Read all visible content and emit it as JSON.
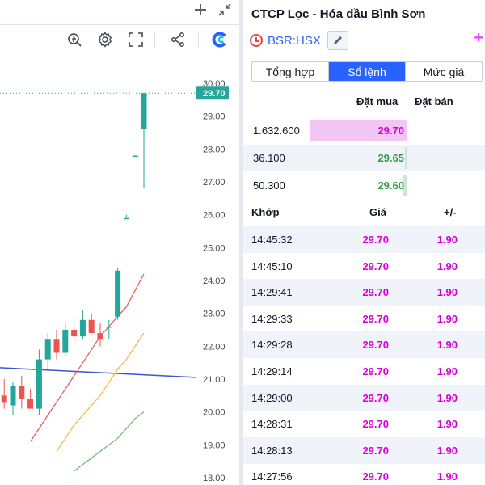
{
  "chart": {
    "price_axis": [
      "30.00",
      "29.00",
      "28.00",
      "27.00",
      "26.00",
      "25.00",
      "24.00",
      "23.00",
      "22.00",
      "21.00",
      "20.00",
      "19.00",
      "18.00"
    ],
    "last_price_label": "29.70",
    "colors": {
      "up": "#26a69a",
      "down": "#ef5350",
      "ma_red": "#ef5350",
      "ma_orange": "#f5b341",
      "ma_green": "#66bb6a",
      "ma_blue": "#3d52d5",
      "last_price_badge": "#26a69a"
    },
    "icons": [
      "plus-icon",
      "collapse-icon",
      "replay-icon",
      "settings-icon",
      "fullscreen-icon",
      "share-icon",
      "brand-logo-icon"
    ]
  },
  "chart_data": {
    "type": "candlestick",
    "y_axis_labels": [
      "30.00",
      "29.00",
      "28.00",
      "27.00",
      "26.00",
      "25.00",
      "24.00",
      "23.00",
      "22.00",
      "21.00",
      "20.00",
      "19.00",
      "18.00"
    ],
    "ylim": [
      17.6,
      30.3
    ],
    "last_price": 29.7,
    "candles": [
      {
        "o": 19.6,
        "h": 20.4,
        "l": 19.0,
        "c": 20.2
      },
      {
        "o": 20.2,
        "h": 20.6,
        "l": 19.4,
        "c": 19.6
      },
      {
        "o": 19.6,
        "h": 20.7,
        "l": 19.5,
        "c": 20.5
      },
      {
        "o": 20.5,
        "h": 21.0,
        "l": 20.1,
        "c": 20.3
      },
      {
        "o": 20.2,
        "h": 20.9,
        "l": 19.9,
        "c": 20.8
      },
      {
        "o": 20.8,
        "h": 21.1,
        "l": 20.1,
        "c": 20.4
      },
      {
        "o": 20.4,
        "h": 20.7,
        "l": 20.1,
        "c": 20.1
      },
      {
        "o": 20.1,
        "h": 21.9,
        "l": 19.9,
        "c": 21.6
      },
      {
        "o": 21.6,
        "h": 22.4,
        "l": 21.3,
        "c": 22.2
      },
      {
        "o": 22.2,
        "h": 22.5,
        "l": 21.6,
        "c": 21.8
      },
      {
        "o": 21.8,
        "h": 22.7,
        "l": 21.7,
        "c": 22.5
      },
      {
        "o": 22.5,
        "h": 22.9,
        "l": 22.1,
        "c": 22.3
      },
      {
        "o": 22.3,
        "h": 23.1,
        "l": 22.2,
        "c": 22.8
      },
      {
        "o": 22.8,
        "h": 23.0,
        "l": 22.4,
        "c": 22.4
      },
      {
        "o": 22.4,
        "h": 22.7,
        "l": 22.0,
        "c": 22.2
      },
      {
        "o": 22.6,
        "h": 22.8,
        "l": 22.2,
        "c": 22.6
      },
      {
        "o": 22.9,
        "h": 24.4,
        "l": 22.8,
        "c": 24.3
      },
      {
        "o": 25.9,
        "h": 26.0,
        "l": 25.9,
        "c": 25.9
      },
      {
        "o": 27.8,
        "h": 27.8,
        "l": 27.8,
        "c": 27.8
      },
      {
        "o": 28.6,
        "h": 29.7,
        "l": 26.8,
        "c": 29.7
      }
    ],
    "ma_red": [
      19.1,
      19.5,
      19.9,
      20.3,
      20.7,
      21.1,
      21.5,
      21.9,
      22.3,
      22.6,
      22.9,
      23.2,
      23.7,
      24.2
    ],
    "ma_orange": [
      18.8,
      19.2,
      19.6,
      19.9,
      20.2,
      20.5,
      20.9,
      21.3,
      21.6,
      22.0,
      22.4
    ],
    "ma_green": [
      18.2,
      18.4,
      18.6,
      18.8,
      19.0,
      19.2,
      19.5,
      19.8,
      20.0
    ],
    "horizontal_line": 21.2
  },
  "stock": {
    "title": "CTCP Lọc - Hóa dầu Bình Sơn",
    "ticker": "BSR:HSX",
    "add_label": "+",
    "tabs": [
      {
        "label": "Tổng hợp"
      },
      {
        "label": "Sổ lệnh"
      },
      {
        "label": "Mức giá"
      }
    ],
    "active_tab": 1,
    "depth": {
      "bid_header": "Đặt mua",
      "ask_header": "Đặt bán",
      "rows": [
        {
          "volume": "1.632.600",
          "price": "29.70",
          "fraction": 1.0,
          "color": "#d500d5"
        },
        {
          "volume": "36.100",
          "price": "29.65",
          "fraction": 0.02,
          "color": "#2ea043"
        },
        {
          "volume": "50.300",
          "price": "29.60",
          "fraction": 0.03,
          "color": "#2ea043"
        }
      ]
    },
    "trades": {
      "headers": {
        "time": "Khớp",
        "price": "Giá",
        "change": "+/-"
      },
      "rows": [
        {
          "time": "14:45:32",
          "price": "29.70",
          "change": "1.90"
        },
        {
          "time": "14:45:10",
          "price": "29.70",
          "change": "1.90"
        },
        {
          "time": "14:29:41",
          "price": "29.70",
          "change": "1.90"
        },
        {
          "time": "14:29:33",
          "price": "29.70",
          "change": "1.90"
        },
        {
          "time": "14:29:28",
          "price": "29.70",
          "change": "1.90"
        },
        {
          "time": "14:29:14",
          "price": "29.70",
          "change": "1.90"
        },
        {
          "time": "14:29:00",
          "price": "29.70",
          "change": "1.90"
        },
        {
          "time": "14:28:31",
          "price": "29.70",
          "change": "1.90"
        },
        {
          "time": "14:28:13",
          "price": "29.70",
          "change": "1.90"
        },
        {
          "time": "14:27:56",
          "price": "29.70",
          "change": "1.90"
        }
      ]
    }
  }
}
